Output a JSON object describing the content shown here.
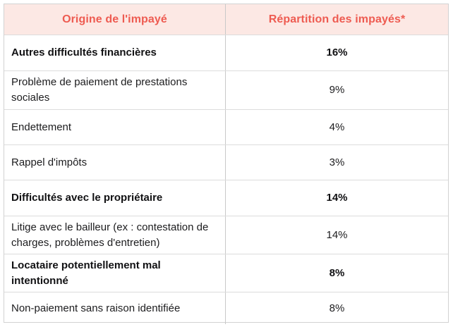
{
  "table": {
    "columns": [
      {
        "label": "Origine de l'impayé"
      },
      {
        "label": "Répartition des impayés*"
      }
    ],
    "rows": [
      {
        "origin": "Autres difficultés financières",
        "share": "16%",
        "bold": true
      },
      {
        "origin": "Problème de paiement de prestations sociales",
        "share": "9%",
        "bold": false
      },
      {
        "origin": "Endettement",
        "share": "4%",
        "bold": false
      },
      {
        "origin": "Rappel d'impôts",
        "share": "3%",
        "bold": false
      },
      {
        "origin": "Difficultés avec le propriétaire",
        "share": "14%",
        "bold": true
      },
      {
        "origin": "Litige avec le bailleur (ex : contestation de charges, problèmes d'entretien)",
        "share": "14%",
        "bold": false
      },
      {
        "origin": "Locataire potentiellement mal intentionné",
        "share": "8%",
        "bold": true
      },
      {
        "origin": "Non-paiement sans raison identifiée",
        "share": "8%",
        "bold": false
      }
    ],
    "colors": {
      "header_bg": "#fce8e4",
      "header_text": "#ee5b51",
      "border": "#dcdcdc",
      "column_divider": "#c9c9c9",
      "body_text": "#1c1c1e"
    }
  },
  "chart_data": {
    "type": "table",
    "title": "",
    "columns": [
      "Origine de l'impayé",
      "Répartition des impayés*"
    ],
    "categories": [
      "Autres difficultés financières",
      "Problème de paiement de prestations sociales",
      "Endettement",
      "Rappel d'impôts",
      "Difficultés avec le propriétaire",
      "Litige avec le bailleur (ex : contestation de charges, problèmes d'entretien)",
      "Locataire potentiellement mal intentionné",
      "Non-paiement sans raison identifiée"
    ],
    "values": [
      16,
      9,
      4,
      3,
      14,
      14,
      8,
      8
    ],
    "value_unit": "%",
    "emphasized_rows": [
      0,
      4,
      6
    ]
  }
}
